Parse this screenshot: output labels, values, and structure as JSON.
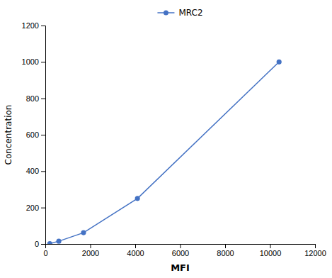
{
  "chart_data": {
    "type": "line",
    "x": [
      200,
      600,
      1700,
      4100,
      10400
    ],
    "series": [
      {
        "name": "MRC2",
        "color": "#4472C4",
        "marker": "circle",
        "values": [
          2,
          15,
          62,
          250,
          1000
        ]
      }
    ],
    "xlabel": "MFI",
    "ylabel": "Concentration",
    "xlim": [
      0,
      12000
    ],
    "ylim": [
      0,
      1200
    ],
    "xticks": [
      0,
      2000,
      4000,
      6000,
      8000,
      10000,
      12000
    ],
    "yticks": [
      0,
      200,
      400,
      600,
      800,
      1000,
      1200
    ],
    "grid": false,
    "legend": "top"
  }
}
